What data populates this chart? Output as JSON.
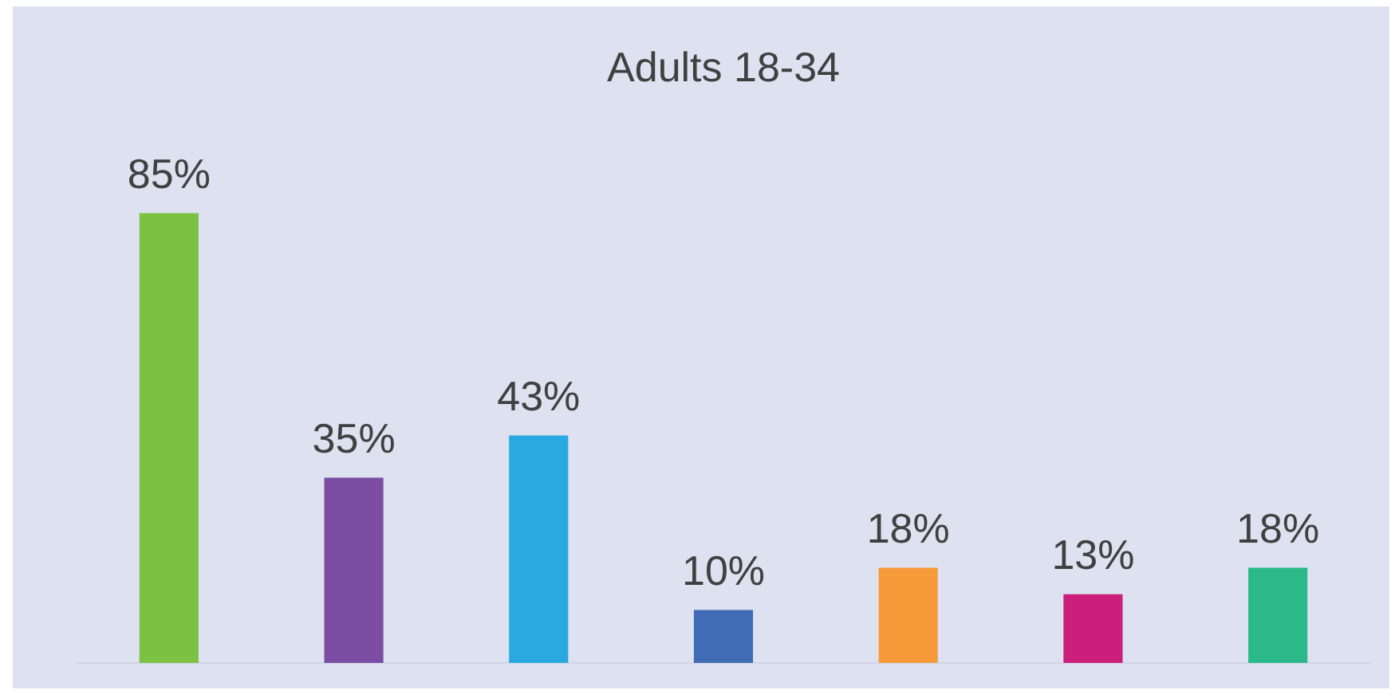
{
  "chart_data": {
    "type": "bar",
    "title": "Adults 18-34",
    "categories": [
      null,
      null,
      null,
      null,
      null,
      null,
      null
    ],
    "values": [
      85,
      35,
      43,
      10,
      18,
      13,
      18
    ],
    "colors": [
      "#7cc242",
      "#7b4ea3",
      "#29a9e0",
      "#3f6cb5",
      "#f79a3a",
      "#cc1f7c",
      "#2bb98a"
    ],
    "value_labels": [
      "85%",
      "35%",
      "43%",
      "10%",
      "18%",
      "13%",
      "18%"
    ],
    "grid": false,
    "legend": false
  }
}
